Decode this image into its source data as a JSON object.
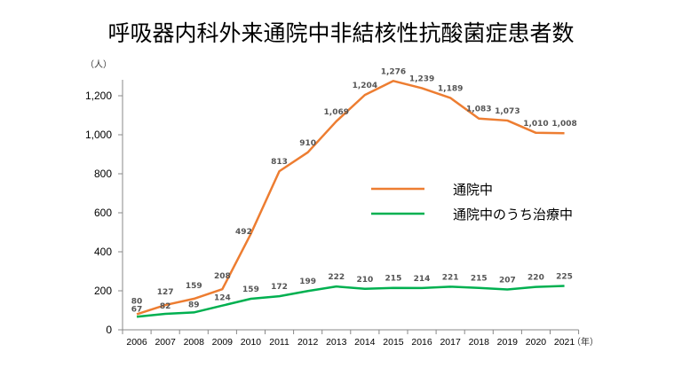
{
  "chart_data": {
    "type": "line",
    "title": "呼吸器内科外来通院中非結核性抗酸菌症患者数",
    "ylabel": "（人）",
    "xlabel": "（年）",
    "ylim": [
      0,
      1300
    ],
    "yticks": [
      0,
      200,
      400,
      600,
      800,
      1000,
      1200
    ],
    "ytick_labels": [
      "0",
      "200",
      "400",
      "600",
      "800",
      "1,000",
      "1,200"
    ],
    "x": [
      "2006",
      "2007",
      "2008",
      "2009",
      "2010",
      "2011",
      "2012",
      "2013",
      "2014",
      "2015",
      "2016",
      "2017",
      "2018",
      "2019",
      "2020",
      "2021"
    ],
    "grid": false,
    "legend_position": "center-right",
    "series": [
      {
        "name": "通院中",
        "color": "#ED7D31",
        "values": [
          80,
          127,
          159,
          208,
          492,
          813,
          910,
          1069,
          1204,
          1276,
          1239,
          1189,
          1083,
          1073,
          1010,
          1008
        ],
        "labels": [
          "80",
          "127",
          "159",
          "208",
          "492",
          "813",
          "910",
          "1,069",
          "1,204",
          "1,276",
          "1,239",
          "1,189",
          "1,083",
          "1,073",
          "1,010",
          "1,008"
        ]
      },
      {
        "name": "通院中のうち治療中",
        "color": "#00B050",
        "values": [
          67,
          82,
          89,
          124,
          159,
          172,
          199,
          222,
          210,
          215,
          214,
          221,
          215,
          207,
          220,
          225
        ],
        "labels": [
          "67",
          "82",
          "89",
          "124",
          "159",
          "172",
          "199",
          "222",
          "210",
          "215",
          "214",
          "221",
          "215",
          "207",
          "220",
          "225"
        ]
      }
    ]
  }
}
